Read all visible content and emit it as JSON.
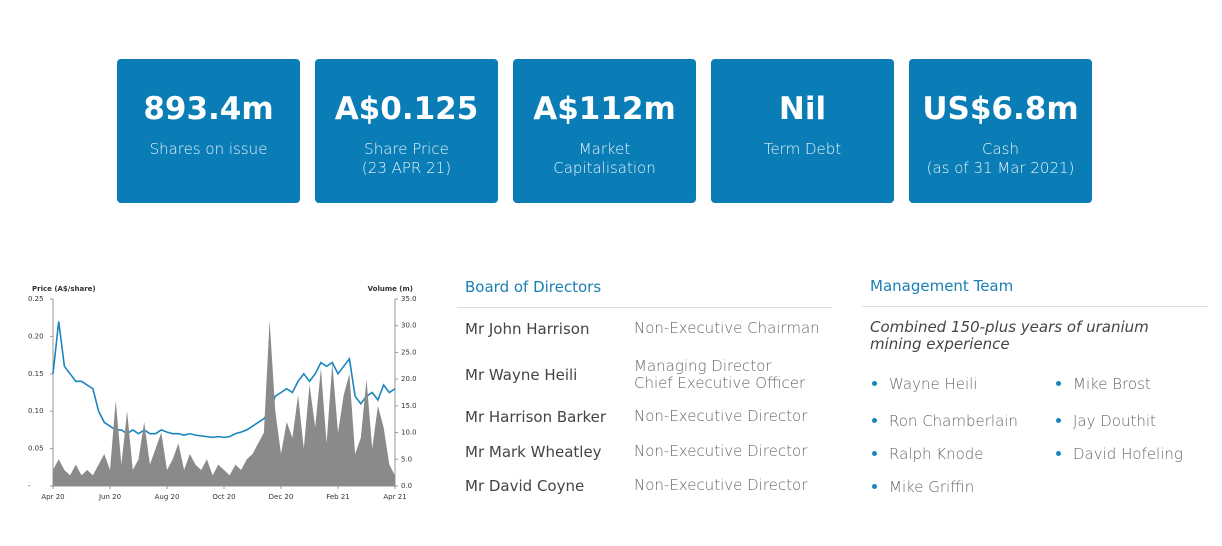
{
  "stats": [
    {
      "value": "893.4m",
      "label": [
        "Shares on issue"
      ]
    },
    {
      "value": "A$0.125",
      "label": [
        "Share Price",
        "(23 APR 21)"
      ]
    },
    {
      "value": "A$112m",
      "label": [
        "Market",
        "Capitalisation"
      ]
    },
    {
      "value": "Nil",
      "label": [
        "Term Debt"
      ]
    },
    {
      "value": "US$6.8m",
      "label": [
        "Cash",
        "(as of 31 Mar 2021)"
      ]
    }
  ],
  "chart_data": {
    "type": "line",
    "y_label": "Price (A$/share)",
    "y2_label": "Volume (m)",
    "categories": [
      "Apr 20",
      null,
      null,
      null,
      null,
      null,
      null,
      null,
      null,
      null,
      "Jun 20",
      null,
      null,
      null,
      null,
      null,
      null,
      null,
      null,
      null,
      "Aug 20",
      null,
      null,
      null,
      null,
      null,
      null,
      null,
      null,
      null,
      "Oct 20",
      null,
      null,
      null,
      null,
      null,
      null,
      null,
      null,
      null,
      "Dec 20",
      null,
      null,
      null,
      null,
      null,
      null,
      null,
      null,
      null,
      "Feb 21",
      null,
      null,
      null,
      null,
      null,
      null,
      null,
      null,
      null,
      "Apr 21"
    ],
    "series": [
      {
        "name": "Price",
        "color": "#1a85bd",
        "values": [
          0.15,
          0.22,
          0.16,
          0.15,
          0.14,
          0.14,
          0.135,
          0.13,
          0.1,
          0.085,
          0.08,
          0.075,
          0.075,
          0.07,
          0.075,
          0.07,
          0.075,
          0.07,
          0.07,
          0.075,
          0.072,
          0.07,
          0.07,
          0.068,
          0.07,
          0.068,
          0.067,
          0.066,
          0.065,
          0.066,
          0.065,
          0.066,
          0.07,
          0.072,
          0.075,
          0.08,
          0.085,
          0.09,
          0.1,
          0.12,
          0.125,
          0.13,
          0.125,
          0.14,
          0.15,
          0.14,
          0.15,
          0.165,
          0.16,
          0.165,
          0.15,
          0.16,
          0.17,
          0.12,
          0.11,
          0.12,
          0.125,
          0.115,
          0.135,
          0.125,
          0.13
        ]
      },
      {
        "name": "Volume",
        "type": "area",
        "axis": "y2",
        "color": "#8a8a8a",
        "values": [
          3,
          5,
          3,
          2,
          4,
          2,
          3,
          2,
          4,
          6,
          3,
          16,
          4,
          14,
          3,
          5,
          12,
          4,
          7,
          10,
          3,
          5,
          8,
          3,
          6,
          4,
          3,
          5,
          2,
          4,
          3,
          2,
          4,
          3,
          5,
          6,
          8,
          10,
          31,
          14,
          6,
          12,
          9,
          17,
          7,
          19,
          11,
          22,
          8,
          23,
          10,
          17,
          21,
          6,
          9,
          20,
          7,
          15,
          11,
          4,
          2
        ]
      }
    ],
    "ylim": [
      0,
      0.25
    ],
    "yticks": [
      {
        "value": 0,
        "label": "-"
      },
      0.05,
      {
        "value": 0.1,
        "label": "0.10"
      },
      0.15,
      {
        "value": 0.2,
        "label": "0.20"
      },
      0.25
    ],
    "y2lim": [
      0,
      35
    ],
    "y2ticks": [
      {
        "value": 0,
        "label": "0.0"
      },
      {
        "value": 5,
        "label": "5.0"
      },
      {
        "value": 10,
        "label": "10.0"
      },
      {
        "value": 15,
        "label": "15.0"
      },
      {
        "value": 20,
        "label": "20.0"
      },
      {
        "value": 25,
        "label": "25.0"
      },
      {
        "value": 30,
        "label": "30.0"
      },
      {
        "value": 35,
        "label": "35.0"
      }
    ]
  },
  "board": {
    "title": "Board of Directors",
    "members": [
      {
        "name": "Mr John Harrison",
        "role": [
          "Non-Executive Chairman"
        ]
      },
      {
        "name": "Mr Wayne Heili",
        "role": [
          "Managing Director",
          "Chief Executive Officer"
        ]
      },
      {
        "name": "Mr Harrison Barker",
        "role": [
          "Non-Executive Director"
        ]
      },
      {
        "name": "Mr Mark Wheatley",
        "role": [
          "Non-Executive Director"
        ]
      },
      {
        "name": "Mr David Coyne",
        "role": [
          "Non-Executive Director"
        ]
      }
    ]
  },
  "management": {
    "title": "Management Team",
    "subtitle": "Combined 150-plus years of uranium mining experience",
    "members": [
      "Wayne Heili",
      "Ron Chamberlain",
      "Ralph Knode",
      "Mike Griffin",
      "Mike Brost",
      "Jay Douthit",
      "David Hofeling"
    ]
  }
}
